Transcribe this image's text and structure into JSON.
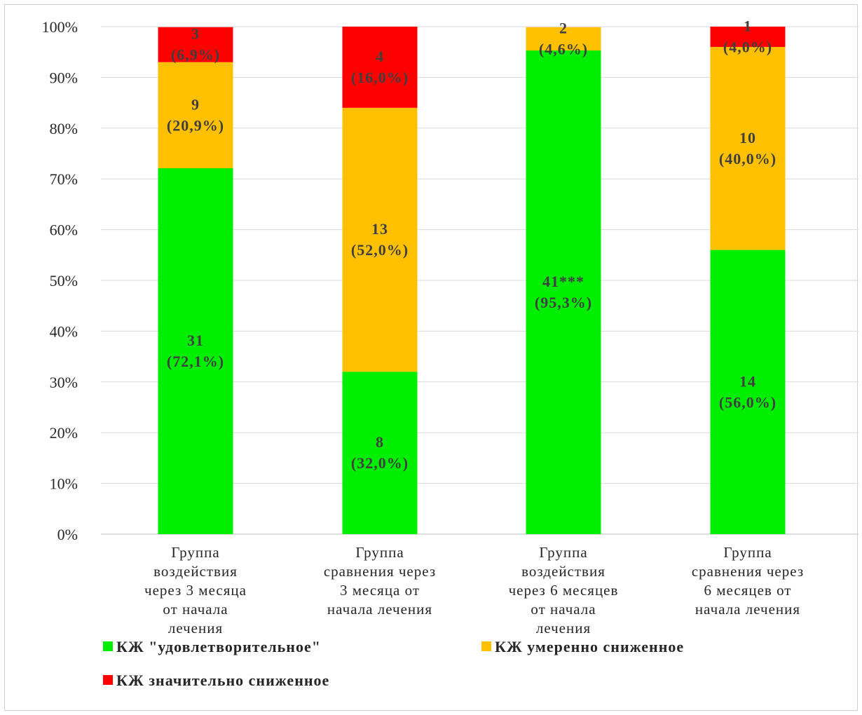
{
  "chart_data": {
    "type": "bar",
    "stacked": true,
    "percent": true,
    "title": "",
    "xlabel": "",
    "ylabel": "",
    "ylim": [
      0,
      100
    ],
    "yticks": [
      "0%",
      "10%",
      "20%",
      "30%",
      "40%",
      "50%",
      "60%",
      "70%",
      "80%",
      "90%",
      "100%"
    ],
    "grid": true,
    "legend_position": "bottom",
    "categories": [
      [
        "Группа",
        "воздействия",
        "через 3 месяца",
        "от начала",
        "лечения"
      ],
      [
        "Группа",
        "сравнения через",
        "3 месяца от",
        "начала лечения"
      ],
      [
        "Группа",
        "воздействия",
        "через 6 месяцев",
        "от начала",
        "лечения"
      ],
      [
        "Группа",
        "сравнения через",
        "6 месяцев от",
        "начала лечения"
      ]
    ],
    "series": [
      {
        "name": "КЖ \"удовлетворительное\"",
        "color": "#00ee00",
        "values": [
          72.1,
          32.0,
          95.3,
          56.0
        ],
        "labels": [
          [
            "31",
            "(72,1%)"
          ],
          [
            "8",
            "(32,0%)"
          ],
          [
            "41***",
            "(95,3%)"
          ],
          [
            "14",
            "(56,0%)"
          ]
        ]
      },
      {
        "name": "КЖ умеренно сниженное",
        "color": "#ffc000",
        "values": [
          20.9,
          52.0,
          4.6,
          40.0
        ],
        "labels": [
          [
            "9",
            "(20,9%)"
          ],
          [
            "13",
            "(52,0%)"
          ],
          [
            "2",
            "(4,6%)"
          ],
          [
            "10",
            "(40,0%)"
          ]
        ]
      },
      {
        "name": "КЖ значительно сниженное",
        "color": "#ff0000",
        "values": [
          6.9,
          16.0,
          0.0,
          4.0
        ],
        "labels": [
          [
            "3",
            "(6,9%)"
          ],
          [
            "4",
            "(16,0%)"
          ],
          null,
          [
            "1",
            "(4,0%)"
          ]
        ]
      }
    ]
  }
}
